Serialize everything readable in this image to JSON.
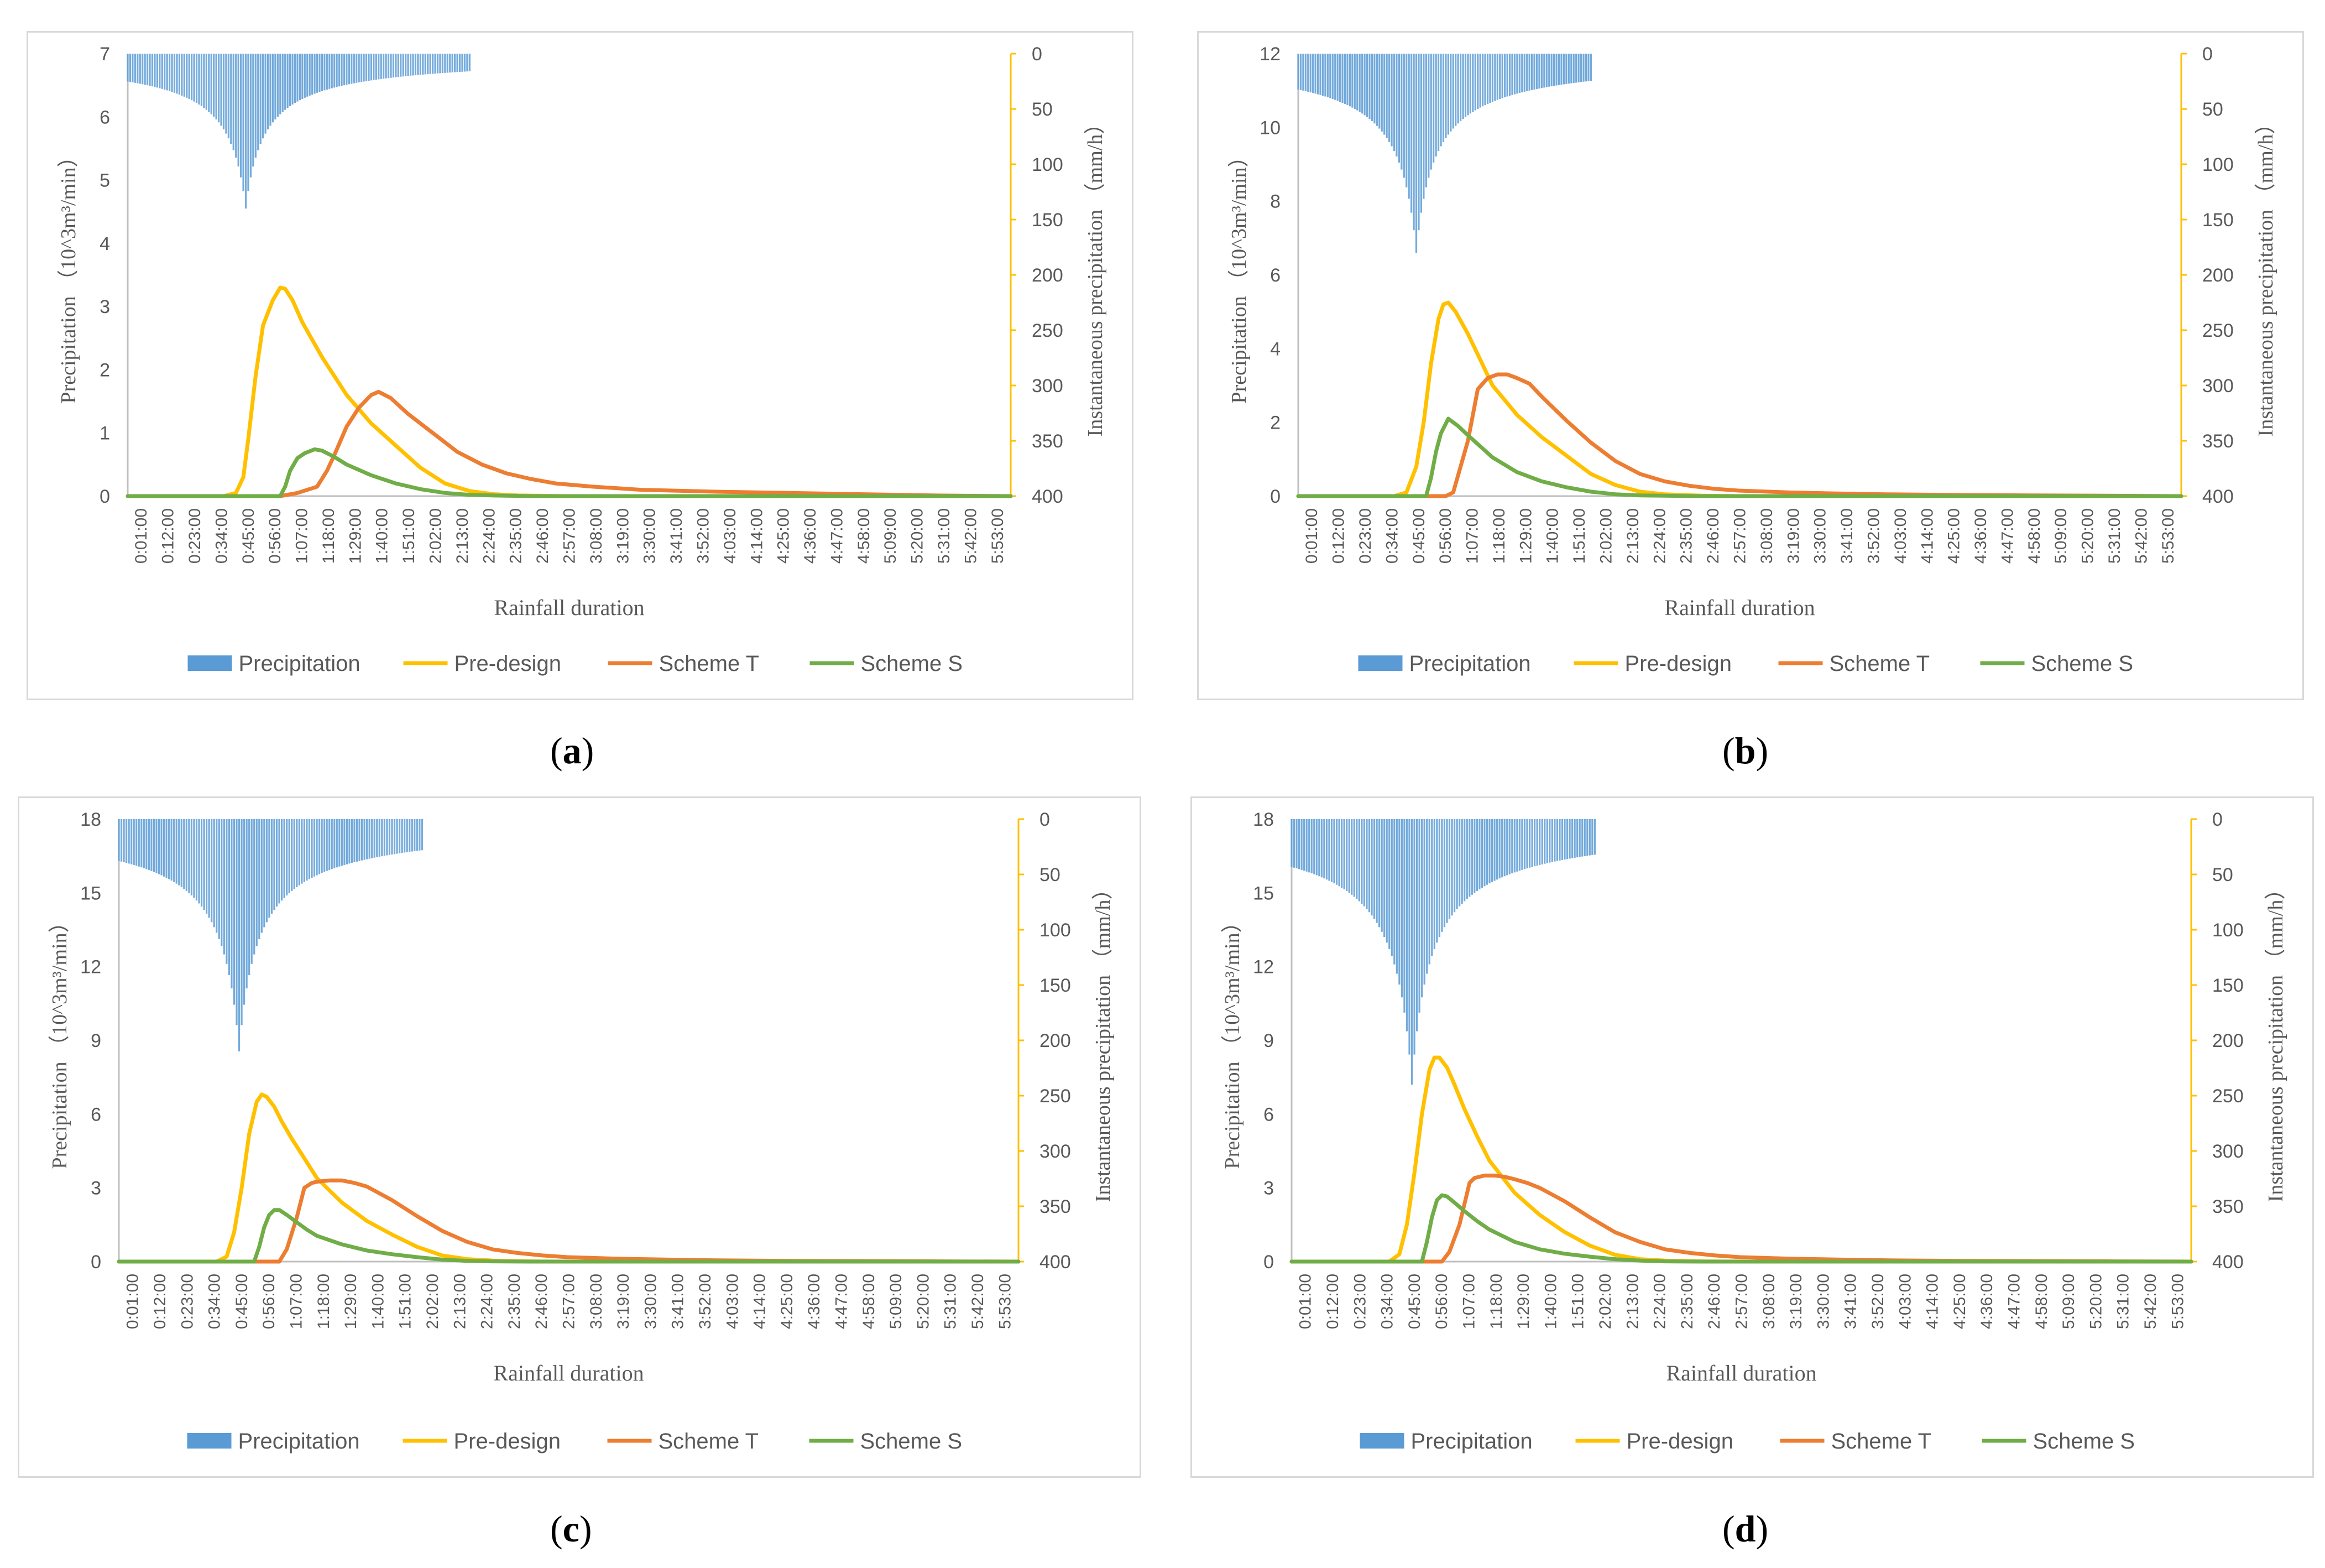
{
  "figure": {
    "captions": [
      "(a)",
      "(b)",
      "(c)",
      "(d)"
    ],
    "caption_letters": [
      "a",
      "b",
      "c",
      "d"
    ]
  },
  "colors": {
    "precipitation": "#5b9bd5",
    "pre_design": "#ffc000",
    "scheme_t": "#ed7d31",
    "scheme_s": "#70ad47",
    "axis": "#bfbfbf",
    "text": "#595959"
  },
  "chart_data": [
    {
      "panel": "a",
      "type": "line",
      "title": "",
      "xlabel": "Rainfall duration",
      "ylabel": "Precipitation （10^3m³/min）",
      "y2label": "Instantaneous precipitation （mm/h）",
      "ylim": [
        0,
        7
      ],
      "yticks": [
        "0",
        "1",
        "2",
        "3",
        "4",
        "5",
        "6",
        "7"
      ],
      "y2lim": [
        0,
        400
      ],
      "y2ticks": [
        "0",
        "50",
        "100",
        "150",
        "200",
        "250",
        "300",
        "350",
        "400"
      ],
      "xticks": [
        "0:01:00",
        "0:12:00",
        "0:23:00",
        "0:34:00",
        "0:45:00",
        "0:56:00",
        "1:07:00",
        "1:18:00",
        "1:29:00",
        "1:40:00",
        "1:51:00",
        "2:02:00",
        "2:13:00",
        "2:24:00",
        "2:35:00",
        "2:46:00",
        "2:57:00",
        "3:08:00",
        "3:19:00",
        "3:30:00",
        "3:41:00",
        "3:52:00",
        "4:03:00",
        "4:14:00",
        "4:25:00",
        "4:36:00",
        "4:47:00",
        "4:58:00",
        "5:09:00",
        "5:20:00",
        "5:31:00",
        "5:42:00",
        "5:53:00"
      ],
      "x_range_min": [
        1,
        360
      ],
      "precipitation_peak_mm_h": 140,
      "precipitation_peak_time_min": 49,
      "precipitation_end_min": 140,
      "legend": [
        "Precipitation",
        "Pre-design",
        "Scheme T",
        "Scheme S"
      ],
      "series": [
        {
          "name": "Pre-design",
          "x": [
            1,
            40,
            45,
            48,
            50,
            53,
            56,
            60,
            63,
            65,
            68,
            72,
            80,
            90,
            100,
            110,
            120,
            130,
            140,
            150,
            160,
            180,
            360
          ],
          "values": [
            0,
            0,
            0.05,
            0.3,
            0.9,
            1.9,
            2.7,
            3.1,
            3.3,
            3.28,
            3.1,
            2.75,
            2.2,
            1.6,
            1.15,
            0.8,
            0.45,
            0.2,
            0.08,
            0.03,
            0.01,
            0,
            0
          ]
        },
        {
          "name": "Scheme T",
          "x": [
            1,
            63,
            70,
            78,
            82,
            85,
            90,
            95,
            100,
            103,
            108,
            115,
            125,
            135,
            145,
            155,
            165,
            175,
            190,
            210,
            240,
            270,
            300,
            330,
            360
          ],
          "values": [
            0,
            0,
            0.05,
            0.15,
            0.4,
            0.65,
            1.1,
            1.4,
            1.6,
            1.65,
            1.55,
            1.3,
            1.0,
            0.7,
            0.5,
            0.36,
            0.27,
            0.2,
            0.15,
            0.1,
            0.07,
            0.05,
            0.03,
            0.01,
            0
          ]
        },
        {
          "name": "Scheme S",
          "x": [
            1,
            63,
            65,
            67,
            70,
            73,
            77,
            80,
            85,
            90,
            100,
            110,
            120,
            130,
            140,
            150,
            165,
            180,
            360
          ],
          "values": [
            0,
            0,
            0.15,
            0.4,
            0.6,
            0.68,
            0.74,
            0.72,
            0.62,
            0.5,
            0.33,
            0.2,
            0.11,
            0.05,
            0.02,
            0.01,
            0,
            0,
            0
          ]
        }
      ]
    },
    {
      "panel": "b",
      "type": "line",
      "title": "",
      "xlabel": "Rainfall duration",
      "ylabel": "Precipitation （10^3m³/min）",
      "y2label": "Instantaneous precipitation （mm/h）",
      "ylim": [
        0,
        12
      ],
      "yticks": [
        "0",
        "2",
        "4",
        "6",
        "8",
        "10",
        "12"
      ],
      "y2lim": [
        0,
        400
      ],
      "y2ticks": [
        "0",
        "50",
        "100",
        "150",
        "200",
        "250",
        "300",
        "350",
        "400"
      ],
      "xticks": [
        "0:01:00",
        "0:12:00",
        "0:23:00",
        "0:34:00",
        "0:45:00",
        "0:56:00",
        "1:07:00",
        "1:18:00",
        "1:29:00",
        "1:40:00",
        "1:51:00",
        "2:02:00",
        "2:13:00",
        "2:24:00",
        "2:35:00",
        "2:46:00",
        "2:57:00",
        "3:08:00",
        "3:19:00",
        "3:30:00",
        "3:41:00",
        "3:52:00",
        "4:03:00",
        "4:14:00",
        "4:25:00",
        "4:36:00",
        "4:47:00",
        "4:58:00",
        "5:09:00",
        "5:20:00",
        "5:31:00",
        "5:42:00",
        "5:53:00"
      ],
      "x_range_min": [
        1,
        360
      ],
      "precipitation_peak_mm_h": 180,
      "precipitation_peak_time_min": 49,
      "precipitation_end_min": 120,
      "legend": [
        "Precipitation",
        "Pre-design",
        "Scheme T",
        "Scheme S"
      ],
      "series": [
        {
          "name": "Pre-design",
          "x": [
            1,
            40,
            45,
            49,
            52,
            55,
            58,
            60,
            62,
            65,
            70,
            75,
            80,
            90,
            100,
            110,
            120,
            130,
            140,
            150,
            165,
            180,
            360
          ],
          "values": [
            0,
            0,
            0.1,
            0.8,
            2.0,
            3.6,
            4.8,
            5.2,
            5.25,
            5.0,
            4.4,
            3.7,
            3.0,
            2.2,
            1.6,
            1.1,
            0.6,
            0.3,
            0.12,
            0.05,
            0.01,
            0,
            0
          ]
        },
        {
          "name": "Scheme T",
          "x": [
            1,
            61,
            64,
            70,
            74,
            78,
            82,
            86,
            90,
            95,
            100,
            110,
            120,
            130,
            140,
            150,
            160,
            170,
            180,
            200,
            220,
            240,
            270,
            300,
            330,
            360
          ],
          "values": [
            0,
            0,
            0.1,
            1.5,
            2.9,
            3.2,
            3.3,
            3.3,
            3.2,
            3.05,
            2.7,
            2.05,
            1.45,
            0.95,
            0.6,
            0.4,
            0.28,
            0.2,
            0.15,
            0.1,
            0.07,
            0.05,
            0.03,
            0.02,
            0.01,
            0
          ]
        },
        {
          "name": "Scheme S",
          "x": [
            1,
            53,
            55,
            57,
            59,
            62,
            66,
            70,
            75,
            80,
            90,
            100,
            110,
            120,
            130,
            140,
            150,
            165,
            180,
            360
          ],
          "values": [
            0,
            0,
            0.5,
            1.2,
            1.7,
            2.1,
            1.9,
            1.65,
            1.35,
            1.05,
            0.65,
            0.4,
            0.24,
            0.12,
            0.05,
            0.02,
            0.01,
            0,
            0,
            0
          ]
        }
      ]
    },
    {
      "panel": "c",
      "type": "line",
      "title": "",
      "xlabel": "Rainfall duration",
      "ylabel": "Precipitation （10^3m³/min）",
      "y2label": "Instantaneous precipitation （mm/h）",
      "ylim": [
        0,
        18
      ],
      "yticks": [
        "0",
        "3",
        "6",
        "9",
        "12",
        "15",
        "18"
      ],
      "y2lim": [
        0,
        400
      ],
      "y2ticks": [
        "0",
        "50",
        "100",
        "150",
        "200",
        "250",
        "300",
        "350",
        "400"
      ],
      "xticks": [
        "0:01:00",
        "0:12:00",
        "0:23:00",
        "0:34:00",
        "0:45:00",
        "0:56:00",
        "1:07:00",
        "1:18:00",
        "1:29:00",
        "1:40:00",
        "1:51:00",
        "2:02:00",
        "2:13:00",
        "2:24:00",
        "2:35:00",
        "2:46:00",
        "2:57:00",
        "3:08:00",
        "3:19:00",
        "3:30:00",
        "3:41:00",
        "3:52:00",
        "4:03:00",
        "4:14:00",
        "4:25:00",
        "4:36:00",
        "4:47:00",
        "4:58:00",
        "5:09:00",
        "5:20:00",
        "5:31:00",
        "5:42:00",
        "5:53:00"
      ],
      "x_range_min": [
        1,
        360
      ],
      "precipitation_peak_mm_h": 210,
      "precipitation_peak_time_min": 49,
      "precipitation_end_min": 122,
      "legend": [
        "Precipitation",
        "Pre-design",
        "Scheme T",
        "Scheme S"
      ],
      "series": [
        {
          "name": "Pre-design",
          "x": [
            1,
            40,
            44,
            47,
            50,
            53,
            56,
            58,
            60,
            63,
            66,
            70,
            75,
            80,
            90,
            100,
            110,
            120,
            130,
            140,
            150,
            165,
            180,
            360
          ],
          "values": [
            0,
            0,
            0.2,
            1.2,
            3.0,
            5.2,
            6.5,
            6.8,
            6.7,
            6.3,
            5.7,
            5.0,
            4.2,
            3.4,
            2.4,
            1.65,
            1.1,
            0.6,
            0.25,
            0.1,
            0.04,
            0.01,
            0,
            0
          ]
        },
        {
          "name": "Scheme T",
          "x": [
            1,
            65,
            68,
            72,
            75,
            78,
            80,
            85,
            90,
            95,
            100,
            110,
            120,
            130,
            140,
            150,
            160,
            170,
            180,
            200,
            220,
            240,
            270,
            300,
            330,
            360
          ],
          "values": [
            0,
            0,
            0.5,
            1.8,
            3.0,
            3.2,
            3.25,
            3.3,
            3.3,
            3.2,
            3.05,
            2.5,
            1.85,
            1.25,
            0.8,
            0.5,
            0.35,
            0.25,
            0.18,
            0.12,
            0.08,
            0.05,
            0.03,
            0.02,
            0.01,
            0
          ]
        },
        {
          "name": "Scheme S",
          "x": [
            1,
            55,
            57,
            59,
            61,
            63,
            65,
            68,
            72,
            76,
            80,
            90,
            100,
            110,
            120,
            130,
            140,
            150,
            165,
            180,
            360
          ],
          "values": [
            0,
            0,
            0.6,
            1.4,
            1.9,
            2.1,
            2.1,
            1.9,
            1.6,
            1.3,
            1.05,
            0.7,
            0.45,
            0.3,
            0.18,
            0.08,
            0.03,
            0.01,
            0,
            0,
            0
          ]
        }
      ]
    },
    {
      "panel": "d",
      "type": "line",
      "title": "",
      "xlabel": "Rainfall duration",
      "ylabel": "Precipitation （10^3m³/min）",
      "y2label": "Instantaneous precipitation （mm/h）",
      "ylim": [
        0,
        18
      ],
      "yticks": [
        "0",
        "3",
        "6",
        "9",
        "12",
        "15",
        "18"
      ],
      "y2lim": [
        0,
        400
      ],
      "y2ticks": [
        "0",
        "50",
        "100",
        "150",
        "200",
        "250",
        "300",
        "350",
        "400"
      ],
      "xticks": [
        "0:01:00",
        "0:12:00",
        "0:23:00",
        "0:34:00",
        "0:45:00",
        "0:56:00",
        "1:07:00",
        "1:18:00",
        "1:29:00",
        "1:40:00",
        "1:51:00",
        "2:02:00",
        "2:13:00",
        "2:24:00",
        "2:35:00",
        "2:46:00",
        "2:57:00",
        "3:08:00",
        "3:19:00",
        "3:30:00",
        "3:41:00",
        "3:52:00",
        "4:03:00",
        "4:14:00",
        "4:25:00",
        "4:36:00",
        "4:47:00",
        "4:58:00",
        "5:09:00",
        "5:20:00",
        "5:31:00",
        "5:42:00",
        "5:53:00"
      ],
      "x_range_min": [
        1,
        360
      ],
      "precipitation_peak_mm_h": 240,
      "precipitation_peak_time_min": 49,
      "precipitation_end_min": 122,
      "legend": [
        "Precipitation",
        "Pre-design",
        "Scheme T",
        "Scheme S"
      ],
      "series": [
        {
          "name": "Pre-design",
          "x": [
            1,
            40,
            44,
            47,
            50,
            53,
            56,
            58,
            60,
            63,
            66,
            70,
            75,
            80,
            90,
            100,
            110,
            120,
            130,
            140,
            150,
            165,
            180,
            360
          ],
          "values": [
            0,
            0,
            0.3,
            1.5,
            3.6,
            6.0,
            7.8,
            8.3,
            8.3,
            7.9,
            7.2,
            6.2,
            5.1,
            4.1,
            2.8,
            1.9,
            1.2,
            0.65,
            0.28,
            0.1,
            0.04,
            0.01,
            0,
            0
          ]
        },
        {
          "name": "Scheme T",
          "x": [
            1,
            61,
            64,
            68,
            72,
            74,
            78,
            82,
            86,
            90,
            95,
            100,
            110,
            120,
            130,
            140,
            150,
            160,
            170,
            180,
            200,
            220,
            240,
            270,
            300,
            330,
            360
          ],
          "values": [
            0,
            0,
            0.4,
            1.5,
            3.2,
            3.4,
            3.5,
            3.5,
            3.45,
            3.35,
            3.2,
            3.0,
            2.45,
            1.8,
            1.2,
            0.8,
            0.5,
            0.35,
            0.25,
            0.18,
            0.12,
            0.08,
            0.05,
            0.03,
            0.02,
            0.01,
            0
          ]
        },
        {
          "name": "Scheme S",
          "x": [
            1,
            53,
            55,
            57,
            59,
            61,
            63,
            66,
            70,
            75,
            80,
            90,
            100,
            110,
            120,
            130,
            140,
            150,
            165,
            180,
            360
          ],
          "values": [
            0,
            0,
            0.8,
            1.8,
            2.5,
            2.7,
            2.65,
            2.4,
            2.05,
            1.65,
            1.3,
            0.8,
            0.5,
            0.32,
            0.2,
            0.1,
            0.04,
            0.01,
            0,
            0,
            0
          ]
        }
      ]
    }
  ]
}
